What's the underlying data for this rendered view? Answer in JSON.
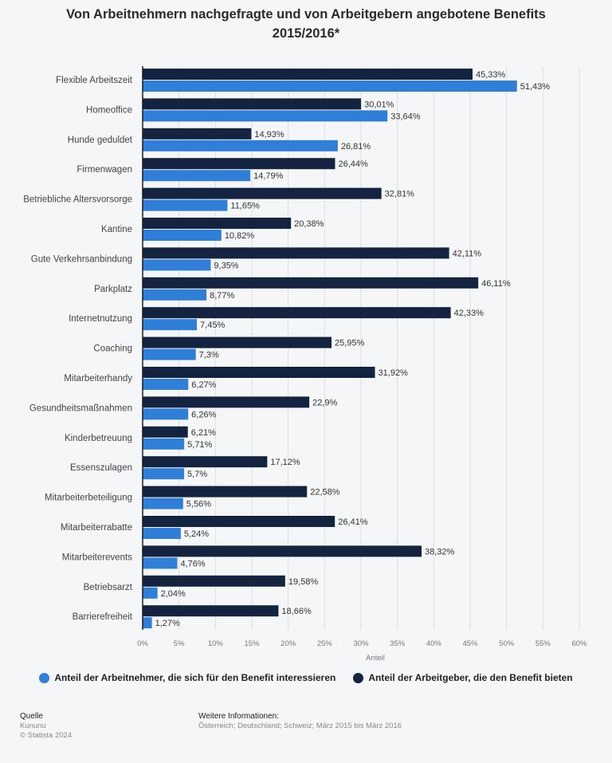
{
  "title_line1": "Von Arbeitnehmern nachgefragte und von Arbeitgebern angebotene Benefits",
  "title_line2": "2015/2016*",
  "legend": {
    "employees": "Anteil der Arbeitnehmer, die sich für den Benefit interessieren",
    "employers": "Anteil der Arbeitgeber, die den Benefit bieten"
  },
  "colors": {
    "employees": "#2f7ed8",
    "employers": "#14233f",
    "grid": "#dcdfe4",
    "axis": "#1d1d1d"
  },
  "footer": {
    "source_head": "Quelle",
    "source": "Kununu",
    "copyright": "© Statista 2024",
    "info_head": "Weitere Informationen:",
    "info": "Österreich; Deutschland; Schweiz; März 2015 bis März 2016"
  },
  "chart_data": {
    "type": "bar",
    "orientation": "horizontal",
    "xlabel": "Anteil",
    "xlim": [
      0,
      60
    ],
    "xticks": [
      0,
      5,
      10,
      15,
      20,
      25,
      30,
      35,
      40,
      45,
      50,
      55,
      60
    ],
    "tick_suffix": "%",
    "grid": true,
    "legend_position": "bottom",
    "categories": [
      "Flexible Arbeitszeit",
      "Homeoffice",
      "Hunde geduldet",
      "Firmenwagen",
      "Betriebliche Altersvorsorge",
      "Kantine",
      "Gute Verkehrsanbindung",
      "Parkplatz",
      "Internetnutzung",
      "Coaching",
      "Mitarbeiterhandy",
      "Gesundheitsmaßnahmen",
      "Kinderbetreuung",
      "Essenszulagen",
      "Mitarbeiterbeteiligung",
      "Mitarbeiterrabatte",
      "Mitarbeiterevents",
      "Betriebsarzt",
      "Barrierefreiheit"
    ],
    "series": [
      {
        "name": "Anteil der Arbeitgeber, die den Benefit bieten",
        "key": "employers",
        "values": [
          45.33,
          30.01,
          14.93,
          26.44,
          32.81,
          20.38,
          42.11,
          46.11,
          42.33,
          25.95,
          31.92,
          22.9,
          6.21,
          17.12,
          22.58,
          26.41,
          38.32,
          19.58,
          18.66
        ],
        "labels": [
          "45,33%",
          "30,01%",
          "14,93%",
          "26,44%",
          "32,81%",
          "20,38%",
          "42,11%",
          "46,11%",
          "42,33%",
          "25,95%",
          "31,92%",
          "22,9%",
          "6,21%",
          "17,12%",
          "22,58%",
          "26,41%",
          "38,32%",
          "19,58%",
          "18,66%"
        ]
      },
      {
        "name": "Anteil der Arbeitnehmer, die sich für den Benefit interessieren",
        "key": "employees",
        "values": [
          51.43,
          33.64,
          26.81,
          14.79,
          11.65,
          10.82,
          9.35,
          8.77,
          7.45,
          7.3,
          6.27,
          6.26,
          5.71,
          5.7,
          5.56,
          5.24,
          4.76,
          2.04,
          1.27
        ],
        "labels": [
          "51,43%",
          "33,64%",
          "26,81%",
          "14,79%",
          "11,65%",
          "10,82%",
          "9,35%",
          "8,77%",
          "7,45%",
          "7,3%",
          "6,27%",
          "6,26%",
          "5,71%",
          "5,7%",
          "5,56%",
          "5,24%",
          "4,76%",
          "2,04%",
          "1,27%"
        ]
      }
    ]
  }
}
